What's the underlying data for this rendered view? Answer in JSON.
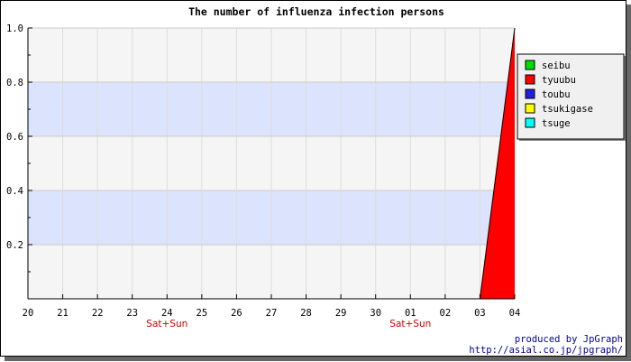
{
  "chart_data": {
    "type": "area",
    "title": "The number of influenza infection persons",
    "xlabel": "",
    "ylabel": "",
    "categories": [
      "20",
      "21",
      "22",
      "23",
      "24",
      "25",
      "26",
      "27",
      "28",
      "29",
      "30",
      "01",
      "02",
      "03",
      "04"
    ],
    "category_sublabels": [
      {
        "category": "24",
        "text": "Sat+Sun"
      },
      {
        "category": "01",
        "text": "Sat+Sun"
      }
    ],
    "y_tick_labels": [
      "0.2",
      "0.4",
      "0.6",
      "0.8",
      "1.0"
    ],
    "ylim": [
      0,
      1.0
    ],
    "grid": true,
    "legend_position": "top-right",
    "series": [
      {
        "name": "seibu",
        "color": "#00dd00",
        "values": [
          0,
          0,
          0,
          0,
          0,
          0,
          0,
          0,
          0,
          0,
          0,
          0,
          0,
          0,
          0
        ]
      },
      {
        "name": "tyuubu",
        "color": "#ff0000",
        "values": [
          0,
          0,
          0,
          0,
          0,
          0,
          0,
          0,
          0,
          0,
          0,
          0,
          0,
          0,
          1
        ]
      },
      {
        "name": "toubu",
        "color": "#2020dd",
        "values": [
          0,
          0,
          0,
          0,
          0,
          0,
          0,
          0,
          0,
          0,
          0,
          0,
          0,
          0,
          0
        ]
      },
      {
        "name": "tsukigase",
        "color": "#ffff00",
        "values": [
          0,
          0,
          0,
          0,
          0,
          0,
          0,
          0,
          0,
          0,
          0,
          0,
          0,
          0,
          0
        ]
      },
      {
        "name": "tsuge",
        "color": "#00ffff",
        "values": [
          0,
          0,
          0,
          0,
          0,
          0,
          0,
          0,
          0,
          0,
          0,
          0,
          0,
          0,
          0
        ]
      }
    ]
  },
  "credit": {
    "line1": "produced by JpGraph",
    "line2": "http://asial.co.jp/jpgraph/"
  }
}
